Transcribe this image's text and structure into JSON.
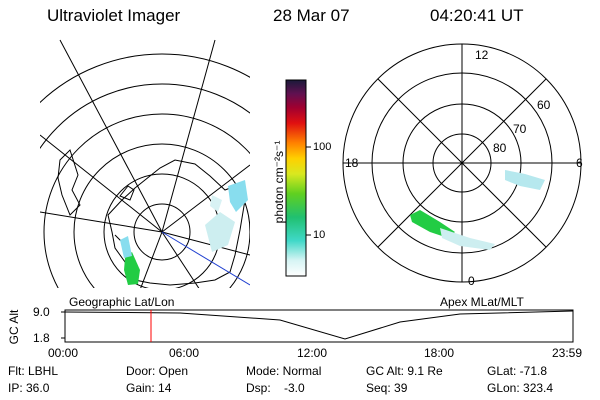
{
  "header": {
    "instrument": "Ultraviolet Imager",
    "date": "28 Mar 07",
    "time": "04:20:41 UT"
  },
  "maps": {
    "left_label": "Geographic Lat/Lon",
    "right_label": "Apex MLat/MLT"
  },
  "polar_plot": {
    "mlt_labels": {
      "top": "12",
      "left": "18",
      "right": "6",
      "bottom": "0"
    },
    "lat_labels": [
      "60",
      "70",
      "80"
    ]
  },
  "colorbar": {
    "unit_label": "photon cm⁻²s⁻¹",
    "ticks": [
      "100",
      "10"
    ]
  },
  "altitude_strip": {
    "axis_title": "GC Alt",
    "y_ticks": [
      "9.0",
      "1.8"
    ],
    "x_ticks": [
      "00:00",
      "06:00",
      "12:00",
      "18:00",
      "23:59"
    ]
  },
  "status": {
    "flt": "Flt: LBHL",
    "ip": "IP: 36.0",
    "door": "Door: Open",
    "gain": "Gain: 14",
    "mode": "Mode: Normal",
    "dsp": "Dsp:    -3.0",
    "gc_alt": "GC Alt: 9.1 Re",
    "seq": "Seq: 39",
    "glat": "GLat: -71.8",
    "glon": "GLon: 323.4"
  },
  "colors": {
    "colorbar_top": "#1a1a3a",
    "colorbar_bottom": "#ffffff",
    "marker": "#ff0000",
    "aurora_green": "#22cc44",
    "aurora_cyan": "#88ddee"
  }
}
